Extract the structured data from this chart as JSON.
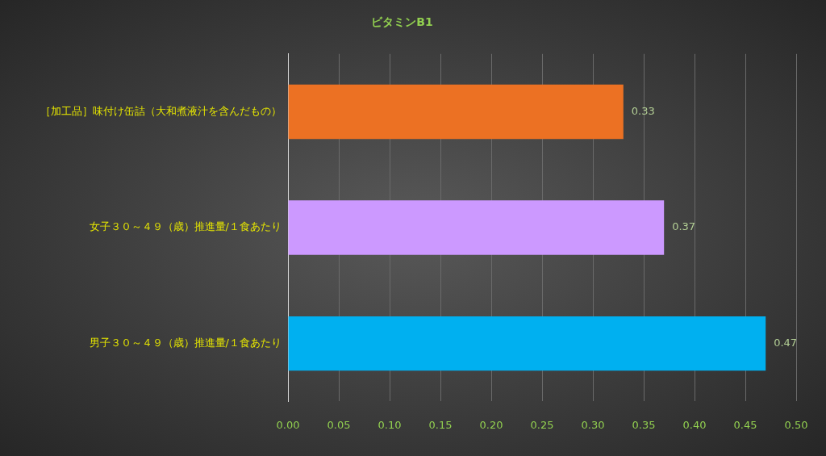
{
  "chart_data": {
    "type": "bar",
    "orientation": "horizontal",
    "title": "ビタミンB1",
    "categories": [
      "［加工品］味付け缶詰（大和煮液汁を含んだもの）",
      "女子３０～４９（歳）推進量/１食あたり",
      "男子３０～４９（歳）推進量/１食あたり"
    ],
    "values": [
      0.33,
      0.37,
      0.47
    ],
    "colors": [
      "#ec7123",
      "#cc99ff",
      "#00b0f0"
    ],
    "xlim": [
      0,
      0.5
    ],
    "xticks": [
      "0.00",
      "0.05",
      "0.10",
      "0.15",
      "0.20",
      "0.25",
      "0.30",
      "0.35",
      "0.40",
      "0.45",
      "0.50"
    ],
    "grid": "x",
    "legend": false,
    "data_labels": true
  }
}
